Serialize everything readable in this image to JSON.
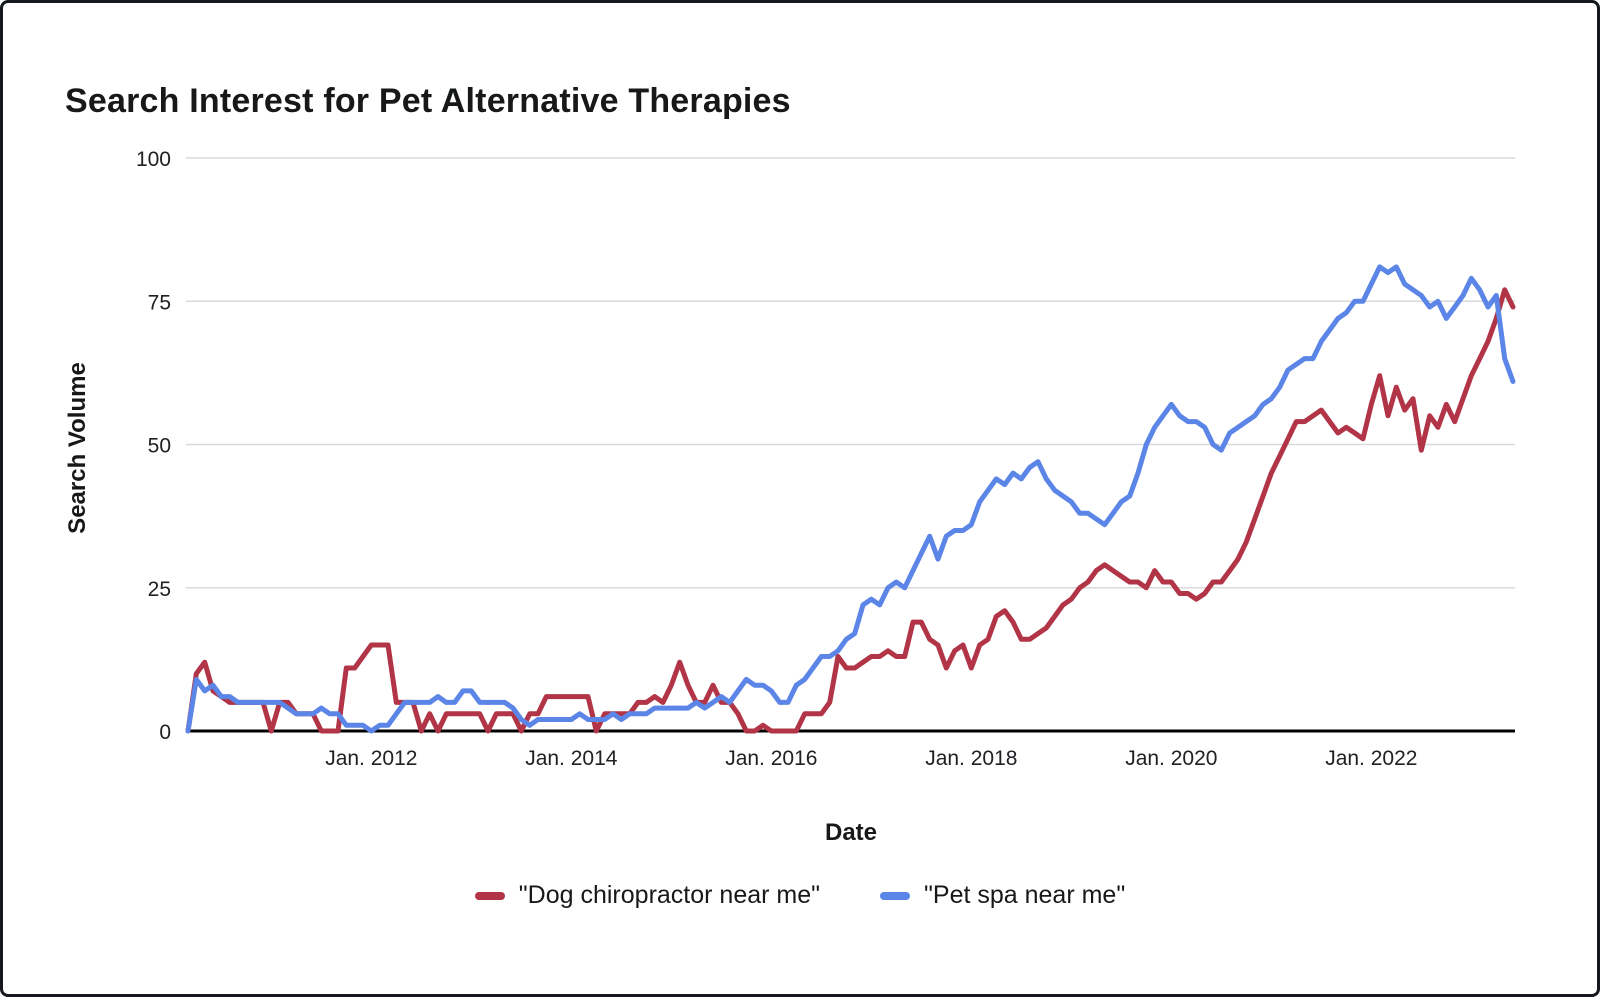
{
  "chart_data": {
    "type": "line",
    "title": "Search Interest for Pet Alternative Therapies",
    "xlabel": "Date",
    "ylabel": "Search Volume",
    "ylim": [
      0,
      100
    ],
    "yticks": [
      0,
      25,
      50,
      75,
      100
    ],
    "grid": true,
    "grid_color": "#d9d9d9",
    "legend_position": "bottom",
    "x_start": "2010-03",
    "x_interval": "monthly",
    "xticks": [
      {
        "index": 22,
        "label": "Jan. 2012"
      },
      {
        "index": 46,
        "label": "Jan. 2014"
      },
      {
        "index": 70,
        "label": "Jan. 2016"
      },
      {
        "index": 94,
        "label": "Jan. 2018"
      },
      {
        "index": 118,
        "label": "Jan. 2020"
      },
      {
        "index": 142,
        "label": "Jan. 2022"
      }
    ],
    "series": [
      {
        "name": "\"Dog chiropractor near me\"",
        "color": "#b13447",
        "values": [
          0,
          10,
          12,
          7,
          6,
          5,
          5,
          5,
          5,
          5,
          0,
          5,
          5,
          3,
          3,
          3,
          0,
          0,
          0,
          11,
          11,
          13,
          15,
          15,
          15,
          5,
          5,
          5,
          0,
          3,
          0,
          3,
          3,
          3,
          3,
          3,
          0,
          3,
          3,
          3,
          0,
          3,
          3,
          6,
          6,
          6,
          6,
          6,
          6,
          0,
          3,
          3,
          3,
          3,
          5,
          5,
          6,
          5,
          8,
          12,
          8,
          5,
          5,
          8,
          5,
          5,
          3,
          0,
          0,
          1,
          0,
          0,
          0,
          0,
          3,
          3,
          3,
          5,
          13,
          11,
          11,
          12,
          13,
          13,
          14,
          13,
          13,
          19,
          19,
          16,
          15,
          11,
          14,
          15,
          11,
          15,
          16,
          20,
          21,
          19,
          16,
          16,
          17,
          18,
          20,
          22,
          23,
          25,
          26,
          28,
          29,
          28,
          27,
          26,
          26,
          25,
          28,
          26,
          26,
          24,
          24,
          23,
          24,
          26,
          26,
          28,
          30,
          33,
          37,
          41,
          45,
          48,
          51,
          54,
          54,
          55,
          56,
          54,
          52,
          53,
          52,
          51,
          57,
          62,
          55,
          60,
          56,
          58,
          49,
          55,
          53,
          57,
          54,
          58,
          62,
          65,
          68,
          72,
          77,
          74
        ]
      },
      {
        "name": "\"Pet spa near me\"",
        "color": "#5b85e6",
        "values": [
          0,
          9,
          7,
          8,
          6,
          6,
          5,
          5,
          5,
          5,
          5,
          5,
          4,
          3,
          3,
          3,
          4,
          3,
          3,
          1,
          1,
          1,
          0,
          1,
          1,
          3,
          5,
          5,
          5,
          5,
          6,
          5,
          5,
          7,
          7,
          5,
          5,
          5,
          5,
          4,
          2,
          1,
          2,
          2,
          2,
          2,
          2,
          3,
          2,
          2,
          2,
          3,
          2,
          3,
          3,
          3,
          4,
          4,
          4,
          4,
          4,
          5,
          4,
          5,
          6,
          5,
          7,
          9,
          8,
          8,
          7,
          5,
          5,
          8,
          9,
          11,
          13,
          13,
          14,
          16,
          17,
          22,
          23,
          22,
          25,
          26,
          25,
          28,
          31,
          34,
          30,
          34,
          35,
          35,
          36,
          40,
          42,
          44,
          43,
          45,
          44,
          46,
          47,
          44,
          42,
          41,
          40,
          38,
          38,
          37,
          36,
          38,
          40,
          41,
          45,
          50,
          53,
          55,
          57,
          55,
          54,
          54,
          53,
          50,
          49,
          52,
          53,
          54,
          55,
          57,
          58,
          60,
          63,
          64,
          65,
          65,
          68,
          70,
          72,
          73,
          75,
          75,
          78,
          81,
          80,
          81,
          78,
          77,
          76,
          74,
          75,
          72,
          74,
          76,
          79,
          77,
          74,
          76,
          65,
          61
        ]
      }
    ]
  }
}
